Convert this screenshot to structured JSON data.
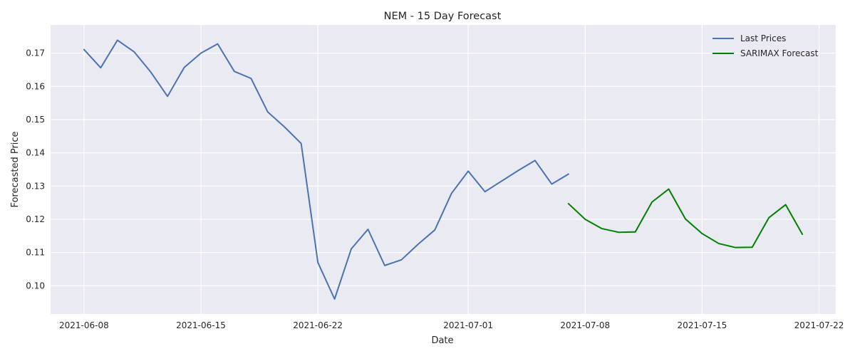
{
  "chart_data": {
    "type": "line",
    "title": "NEM - 15 Day Forecast",
    "xlabel": "Date",
    "ylabel": "Forecasted Price",
    "x_ticks": [
      "2021-06-08",
      "2021-06-15",
      "2021-06-22",
      "2021-07-01",
      "2021-07-08",
      "2021-07-15",
      "2021-07-22"
    ],
    "y_ticks": [
      "0.10",
      "0.11",
      "0.12",
      "0.13",
      "0.14",
      "0.15",
      "0.16",
      "0.17"
    ],
    "xlim": [
      "2021-06-06",
      "2021-07-23"
    ],
    "ylim": [
      0.0915,
      0.1785
    ],
    "grid": true,
    "legend_position": "top-right",
    "colors": {
      "background": "#eaeaf2",
      "grid": "#ffffff"
    },
    "series": [
      {
        "name": "Last Prices",
        "color": "#4c72b0",
        "x": [
          "2021-06-08",
          "2021-06-09",
          "2021-06-10",
          "2021-06-11",
          "2021-06-12",
          "2021-06-13",
          "2021-06-14",
          "2021-06-15",
          "2021-06-16",
          "2021-06-17",
          "2021-06-18",
          "2021-06-19",
          "2021-06-20",
          "2021-06-21",
          "2021-06-22",
          "2021-06-23",
          "2021-06-24",
          "2021-06-25",
          "2021-06-26",
          "2021-06-27",
          "2021-06-28",
          "2021-06-29",
          "2021-06-30",
          "2021-07-01",
          "2021-07-02",
          "2021-07-03",
          "2021-07-04",
          "2021-07-05",
          "2021-07-06",
          "2021-07-07"
        ],
        "values": [
          0.1711,
          0.1656,
          0.1739,
          0.1704,
          0.1643,
          0.157,
          0.1657,
          0.17,
          0.1728,
          0.1645,
          0.1624,
          0.1523,
          0.1478,
          0.1428,
          0.107,
          0.096,
          0.1111,
          0.117,
          0.1061,
          0.1078,
          0.1125,
          0.1168,
          0.1278,
          0.1345,
          0.1283,
          0.1315,
          0.1347,
          0.1377,
          0.1306,
          0.1336
        ]
      },
      {
        "name": "SARIMAX Forecast",
        "color": "#008000",
        "x": [
          "2021-07-07",
          "2021-07-08",
          "2021-07-09",
          "2021-07-10",
          "2021-07-11",
          "2021-07-12",
          "2021-07-13",
          "2021-07-14",
          "2021-07-15",
          "2021-07-16",
          "2021-07-17",
          "2021-07-18",
          "2021-07-19",
          "2021-07-20",
          "2021-07-21"
        ],
        "values": [
          0.1247,
          0.12,
          0.1172,
          0.1161,
          0.1162,
          0.1252,
          0.1291,
          0.1201,
          0.1157,
          0.1127,
          0.1115,
          0.1116,
          0.1205,
          0.1244,
          0.1155
        ]
      }
    ]
  }
}
